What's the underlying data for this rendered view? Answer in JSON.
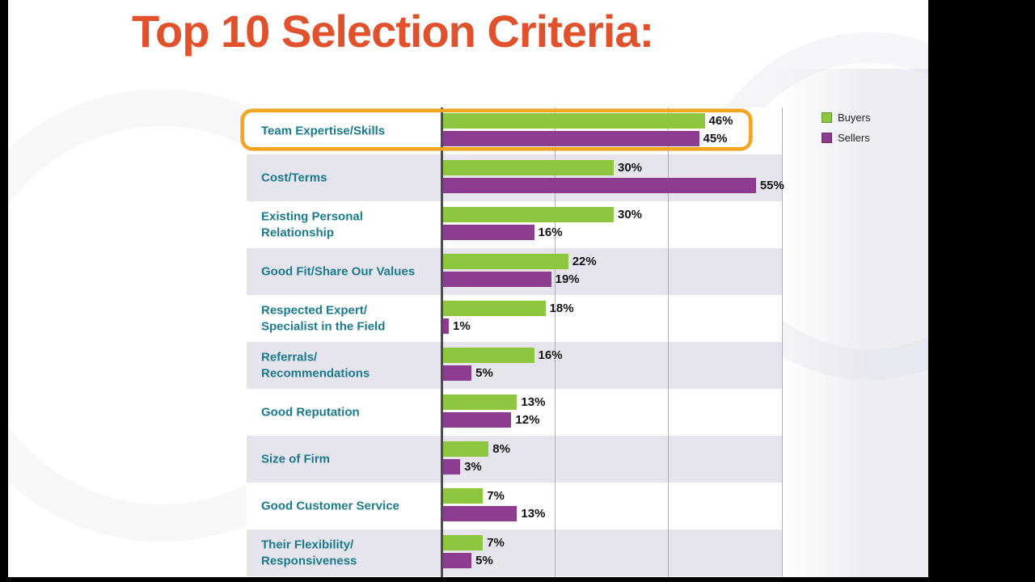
{
  "slide": {
    "title": "Top 10 Selection Criteria:"
  },
  "legend": [
    {
      "label": "Buyers",
      "color": "#8DC63F"
    },
    {
      "label": "Sellers",
      "color": "#8C3D90"
    }
  ],
  "colors": {
    "title": "#E0512C",
    "category_label": "#1A7A8E",
    "buyers_bar": "#8DC63F",
    "sellers_bar": "#8C3D90",
    "row_alt_background": "#E6E5EE",
    "highlight_border": "#F3A51D"
  },
  "chart_data": {
    "type": "bar",
    "orientation": "horizontal",
    "title": "Top 10 Selection Criteria:",
    "categories": [
      "Team Expertise/Skills",
      "Cost/Terms",
      "Existing Personal\nRelationship",
      "Good Fit/Share Our Values",
      "Respected Expert/\nSpecialist in the Field",
      "Referrals/\nRecommendations",
      "Good Reputation",
      "Size of Firm",
      "Good Customer Service",
      "Their Flexibility/\nResponsiveness"
    ],
    "series": [
      {
        "name": "Buyers",
        "color": "#8DC63F",
        "values": [
          46,
          30,
          30,
          22,
          18,
          16,
          13,
          8,
          7,
          7
        ]
      },
      {
        "name": "Sellers",
        "color": "#8C3D90",
        "values": [
          45,
          55,
          16,
          19,
          1,
          5,
          12,
          3,
          13,
          5
        ]
      }
    ],
    "value_suffix": "%",
    "xlim": [
      0,
      60
    ],
    "gridlines": [
      20,
      40,
      60
    ],
    "grid": true,
    "legend_position": "top-right",
    "highlighted_category": "Team Expertise/Skills"
  }
}
